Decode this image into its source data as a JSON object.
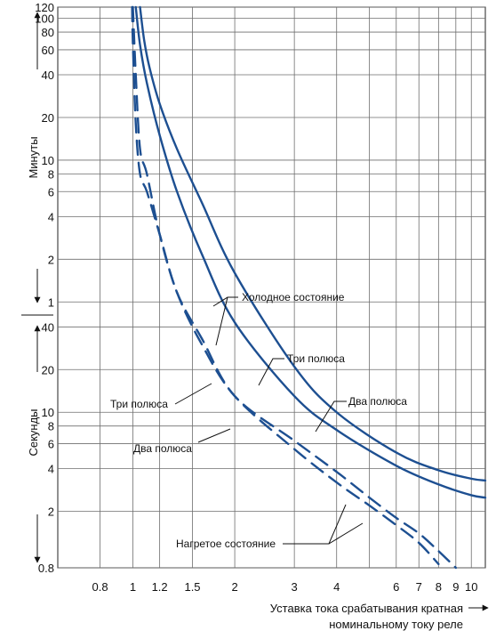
{
  "chart_data": {
    "type": "line",
    "title": "",
    "x_axis": {
      "label_line1": "Уставка тока срабатывания кратная",
      "label_line2": "номинальному току реле",
      "scale": "log",
      "range": [
        0.6,
        11
      ],
      "ticks": [
        0.8,
        1,
        1.2,
        1.5,
        2,
        3,
        4,
        6,
        7,
        8,
        9,
        10
      ],
      "tick_labels": [
        "0.8",
        "1",
        "1.2",
        "1.5",
        "2",
        "3",
        "4",
        "6",
        "7",
        "8",
        "9",
        "10"
      ],
      "extra_gridlines": [
        5
      ]
    },
    "y_axis": {
      "scale": "log",
      "unit_seconds_range": [
        0.8,
        7200
      ],
      "minutes_label": "Минуты",
      "seconds_label": "Секунды",
      "minutes_ticks": [
        1,
        2,
        4,
        6,
        8,
        10,
        20,
        40,
        60,
        80,
        100,
        120
      ],
      "minutes_tick_labels": [
        "1",
        "2",
        "4",
        "6",
        "8",
        "10",
        "20",
        "40",
        "60",
        "80",
        "100",
        "120"
      ],
      "seconds_ticks": [
        0.8,
        2,
        4,
        6,
        8,
        10,
        20,
        40
      ],
      "seconds_tick_labels": [
        "0.8",
        "2",
        "4",
        "6",
        "8",
        "10",
        "20",
        "40"
      ]
    },
    "grid": true,
    "series": [
      {
        "name": "Холодное состояние / Три полюса",
        "state": "cold",
        "style": "solid",
        "color": "#1d4f91",
        "x": [
          1.05,
          1.08,
          1.12,
          1.2,
          1.35,
          1.6,
          2,
          3,
          4,
          6,
          8,
          10,
          11
        ],
        "y_seconds": [
          7200,
          4200,
          2700,
          1500,
          720,
          300,
          96,
          21,
          10,
          5.2,
          3.9,
          3.4,
          3.3
        ]
      },
      {
        "name": "Холодное состояние / Два полюса",
        "state": "cold",
        "style": "solid",
        "color": "#1d4f91",
        "x": [
          1.02,
          1.05,
          1.1,
          1.2,
          1.35,
          1.6,
          2,
          3,
          4,
          6,
          8,
          10,
          11
        ],
        "y_seconds": [
          7200,
          3900,
          2100,
          900,
          360,
          130,
          43,
          13,
          7.5,
          4.2,
          3.1,
          2.6,
          2.5
        ]
      },
      {
        "name": "Нагретое состояние / Три полюса",
        "state": "warm",
        "style": "dashed",
        "color": "#1d4f91",
        "x": [
          1.0,
          1.02,
          1.05,
          1.1,
          1.2,
          1.35,
          1.6,
          2,
          3,
          4,
          5,
          6,
          7,
          8
        ],
        "y_seconds": [
          7200,
          2400,
          720,
          480,
          180,
          70,
          30,
          13,
          5.5,
          3.2,
          2.2,
          1.6,
          1.2,
          0.85
        ]
      },
      {
        "name": "Нагретое состояние / Два полюса",
        "state": "warm",
        "style": "dashed",
        "color": "#1d4f91",
        "x": [
          0.995,
          1.0,
          1.02,
          1.05,
          1.1,
          1.2,
          1.35,
          1.6,
          2,
          3,
          4,
          5,
          6,
          7,
          8,
          9
        ],
        "y_seconds": [
          7200,
          4000,
          1080,
          480,
          360,
          180,
          70,
          33,
          13,
          6.3,
          3.8,
          2.5,
          1.8,
          1.4,
          1.05,
          0.8
        ]
      }
    ],
    "annotations": {
      "cold_state": "Холодное состояние",
      "warm_state": "Нагретое состояние",
      "three_poles_cold": "Три полюса",
      "two_poles_cold": "Два полюса",
      "three_poles_warm": "Три полюса",
      "two_poles_warm": "Два полюса"
    },
    "colors": {
      "curve": "#1d4f91",
      "grid": "#6e6e6e",
      "text": "#111111"
    }
  }
}
